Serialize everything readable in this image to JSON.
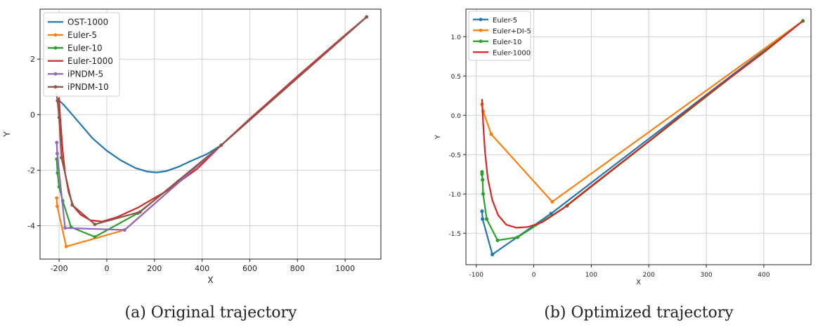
{
  "chart_data": [
    {
      "type": "line",
      "caption": "(a) Original trajectory",
      "xlabel": "X",
      "ylabel": "Y",
      "xlim": [
        -280,
        1150
      ],
      "ylim": [
        -5.2,
        3.8
      ],
      "xticks": [
        -200,
        0,
        200,
        400,
        600,
        800,
        1000
      ],
      "yticks": [
        -4,
        -2,
        0,
        2
      ],
      "grid": true,
      "legend_position": "top-left",
      "series": [
        {
          "name": "OST-1000",
          "color": "#1f77b4",
          "markers": false,
          "points": [
            [
              -205,
              0.55
            ],
            [
              -180,
              0.35
            ],
            [
              -150,
              0.05
            ],
            [
              -110,
              -0.35
            ],
            [
              -60,
              -0.85
            ],
            [
              0,
              -1.3
            ],
            [
              60,
              -1.65
            ],
            [
              120,
              -1.92
            ],
            [
              170,
              -2.05
            ],
            [
              210,
              -2.08
            ],
            [
              250,
              -2.03
            ],
            [
              300,
              -1.88
            ],
            [
              350,
              -1.68
            ],
            [
              420,
              -1.42
            ],
            [
              480,
              -1.1
            ],
            [
              600,
              -0.18
            ],
            [
              800,
              1.35
            ],
            [
              1000,
              2.85
            ],
            [
              1090,
              3.52
            ]
          ]
        },
        {
          "name": "Euler-5",
          "color": "#ff7f0e",
          "markers": true,
          "points": [
            [
              -210,
              -3.0
            ],
            [
              -208,
              -3.3
            ],
            [
              -170,
              -4.75
            ],
            [
              75,
              -4.15
            ],
            [
              480,
              -1.1
            ],
            [
              1090,
              3.52
            ]
          ]
        },
        {
          "name": "Euler-10",
          "color": "#2ca02c",
          "markers": true,
          "points": [
            [
              -210,
              -1.6
            ],
            [
              -207,
              -2.1
            ],
            [
              -200,
              -2.6
            ],
            [
              -185,
              -3.1
            ],
            [
              -150,
              -4.05
            ],
            [
              -50,
              -4.4
            ],
            [
              130,
              -3.55
            ],
            [
              300,
              -2.4
            ],
            [
              480,
              -1.1
            ],
            [
              1090,
              3.52
            ]
          ]
        },
        {
          "name": "Euler-1000",
          "color": "#d62728",
          "markers": false,
          "points": [
            [
              -200,
              0.6
            ],
            [
              -198,
              0.2
            ],
            [
              -193,
              -0.4
            ],
            [
              -185,
              -1.3
            ],
            [
              -175,
              -2.1
            ],
            [
              -160,
              -2.8
            ],
            [
              -140,
              -3.3
            ],
            [
              -110,
              -3.6
            ],
            [
              -70,
              -3.8
            ],
            [
              -20,
              -3.85
            ],
            [
              40,
              -3.7
            ],
            [
              130,
              -3.35
            ],
            [
              250,
              -2.75
            ],
            [
              380,
              -1.95
            ],
            [
              480,
              -1.1
            ],
            [
              600,
              -0.15
            ],
            [
              800,
              1.38
            ],
            [
              1000,
              2.87
            ],
            [
              1090,
              3.52
            ]
          ]
        },
        {
          "name": "iPNDM-5",
          "color": "#9467bd",
          "markers": true,
          "points": [
            [
              -210,
              -1.0
            ],
            [
              -208,
              -1.4
            ],
            [
              -175,
              -4.08
            ],
            [
              75,
              -4.15
            ],
            [
              480,
              -1.1
            ],
            [
              1090,
              3.52
            ]
          ]
        },
        {
          "name": "iPNDM-10",
          "color": "#8c564b",
          "markers": true,
          "points": [
            [
              -210,
              0.72
            ],
            [
              -207,
              0.5
            ],
            [
              -200,
              -0.1
            ],
            [
              -190,
              -1.55
            ],
            [
              -145,
              -3.25
            ],
            [
              -50,
              -3.95
            ],
            [
              140,
              -3.5
            ],
            [
              480,
              -1.1
            ],
            [
              1090,
              3.52
            ]
          ]
        }
      ]
    },
    {
      "type": "line",
      "caption": "(b) Optimized trajectory",
      "xlabel": "X",
      "ylabel": "Y",
      "xlim": [
        -118,
        482
      ],
      "ylim": [
        -1.9,
        1.35
      ],
      "xticks": [
        -100,
        0,
        100,
        200,
        300,
        400
      ],
      "yticks": [
        -1.5,
        -1.0,
        -0.5,
        0.0,
        0.5,
        1.0
      ],
      "grid": true,
      "legend_position": "top-left",
      "series": [
        {
          "name": "Euler-5",
          "color": "#1f77b4",
          "markers": true,
          "points": [
            [
              -90,
              -1.22
            ],
            [
              -89,
              -1.32
            ],
            [
              -72,
              -1.77
            ],
            [
              30,
              -1.25
            ],
            [
              468,
              1.2
            ]
          ]
        },
        {
          "name": "Euler+DI-5",
          "color": "#ff7f0e",
          "markers": true,
          "points": [
            [
              -90,
              0.14
            ],
            [
              -88,
              0.05
            ],
            [
              -74,
              -0.24
            ],
            [
              32,
              -1.1
            ],
            [
              468,
              1.2
            ]
          ]
        },
        {
          "name": "Euler-10",
          "color": "#2ca02c",
          "markers": true,
          "points": [
            [
              -90,
              -0.72
            ],
            [
              -90,
              -0.75
            ],
            [
              -89,
              -0.82
            ],
            [
              -88,
              -1.0
            ],
            [
              -82,
              -1.32
            ],
            [
              -63,
              -1.59
            ],
            [
              -28,
              -1.55
            ],
            [
              58,
              -1.15
            ],
            [
              468,
              1.2
            ]
          ]
        },
        {
          "name": "Euler-1000",
          "color": "#d62728",
          "markers": false,
          "points": [
            [
              -90,
              0.2
            ],
            [
              -88,
              -0.1
            ],
            [
              -85,
              -0.45
            ],
            [
              -80,
              -0.8
            ],
            [
              -72,
              -1.08
            ],
            [
              -62,
              -1.27
            ],
            [
              -48,
              -1.39
            ],
            [
              -30,
              -1.43
            ],
            [
              -10,
              -1.42
            ],
            [
              15,
              -1.36
            ],
            [
              50,
              -1.19
            ],
            [
              100,
              -0.9
            ],
            [
              200,
              -0.33
            ],
            [
              300,
              0.25
            ],
            [
              400,
              0.8
            ],
            [
              468,
              1.2
            ]
          ]
        }
      ]
    }
  ]
}
